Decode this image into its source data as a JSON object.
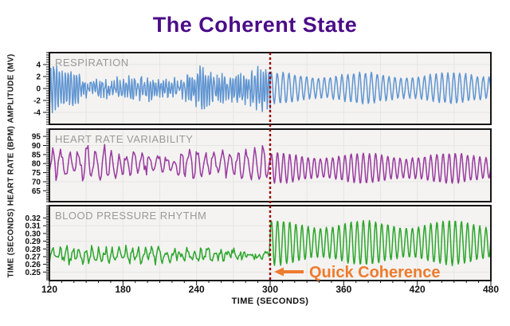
{
  "title": {
    "text": "The Coherent State",
    "color": "#4B0C87"
  },
  "event_marker": {
    "time": 300,
    "color": "#990000",
    "style": "dotted"
  },
  "annotation": {
    "text": "Quick Coherence",
    "color": "#EE7B2E",
    "arrow_direction": "left",
    "points_to_time": 300
  },
  "chart_data": {
    "type": "line",
    "title": "The Coherent State",
    "x_axis": {
      "title": "TIME (SECONDS)",
      "min": 120,
      "max": 480,
      "tick_values": [
        120,
        180,
        240,
        300,
        360,
        420,
        480
      ],
      "tick_labels": [
        "120",
        "180",
        "240",
        "300",
        "360",
        "420",
        "480"
      ],
      "grid_interval_seconds": 30
    },
    "layout": {
      "grid": true,
      "background": "#f4f3f1",
      "grid_color": "#e5e5e3",
      "border_color": "#161616"
    },
    "description": "Three stacked physiological recordings vs time. Before 300 s the signals are erratic (incoherent); at 300 s (dark-red dotted event line labeled Quick Coherence) all three become smooth regular ~0.2 Hz oscillations (coherent state).",
    "panels": [
      {
        "id": "respiration",
        "label": "RESPIRATION",
        "y_label": "AMPLITUDE (MV)",
        "color": "#6095D2",
        "y_min": -6,
        "y_max": 6,
        "tick_values": [
          4,
          2,
          0,
          -2,
          -4
        ],
        "tick_labels": [
          "4",
          "2",
          "0",
          "-2",
          "-4"
        ],
        "grid_values": [
          4,
          0,
          -4
        ],
        "seed": 11,
        "dt_pre": 0.4,
        "dt_post": 0.5,
        "incoherent": {
          "t_start": 120,
          "t_end": 300,
          "baseline": 0,
          "amplitude": 3.1,
          "period": 2.3,
          "freq_jitter": 0.9,
          "noise": 1.4
        },
        "coherent": {
          "t_start": 300,
          "t_end": 480,
          "baseline": 0.1,
          "amplitude": 2.5,
          "period": 4.8,
          "noise": 0.3
        }
      },
      {
        "id": "heart-rate-variability",
        "label": "HEART RATE VARIABILITY",
        "y_label": "HEART RATE (BPM)",
        "color": "#9A3AA0",
        "y_min": 59,
        "y_max": 99,
        "tick_values": [
          95,
          90,
          85,
          80,
          75,
          70,
          65
        ],
        "tick_labels": [
          "95",
          "90",
          "85",
          "80",
          "75",
          "70",
          "65"
        ],
        "grid_values": [
          90,
          80,
          70
        ],
        "seed": 5,
        "dt_pre": 0.9,
        "dt_post": 0.45,
        "incoherent": {
          "t_start": 120,
          "t_end": 300,
          "baseline": 80,
          "amplitude": 7,
          "period": 6.5,
          "freq_jitter": 0.9,
          "noise": 6
        },
        "coherent": {
          "t_start": 300,
          "t_end": 480,
          "baseline": 77.5,
          "amplitude": 8,
          "period": 5,
          "noise": 0.8
        }
      },
      {
        "id": "blood-pressure-rhythm",
        "label": "BLOOD PRESSURE RHYTHM",
        "y_label": "TIME (SECONDS)",
        "color": "#2BA62B",
        "y_min": 0.239,
        "y_max": 0.336,
        "tick_values": [
          0.32,
          0.31,
          0.3,
          0.29,
          0.28,
          0.27,
          0.26,
          0.25
        ],
        "tick_labels": [
          "0.32",
          "0.31",
          "0.30",
          "0.29",
          "0.28",
          "0.27",
          "0.26",
          "0.25"
        ],
        "grid_values": [
          0.31,
          0.29,
          0.27,
          0.25
        ],
        "seed": 3,
        "dt_pre": 0.8,
        "dt_post": 0.45,
        "incoherent": {
          "t_start": 120,
          "t_end": 300,
          "baseline": 0.272,
          "amplitude": 0.007,
          "period": 5.5,
          "freq_jitter": 1.0,
          "noise": 0.01
        },
        "coherent": {
          "t_start": 300,
          "t_end": 480,
          "baseline": 0.288,
          "amplitude": 0.028,
          "period": 5,
          "noise": 0.0015
        }
      }
    ]
  }
}
